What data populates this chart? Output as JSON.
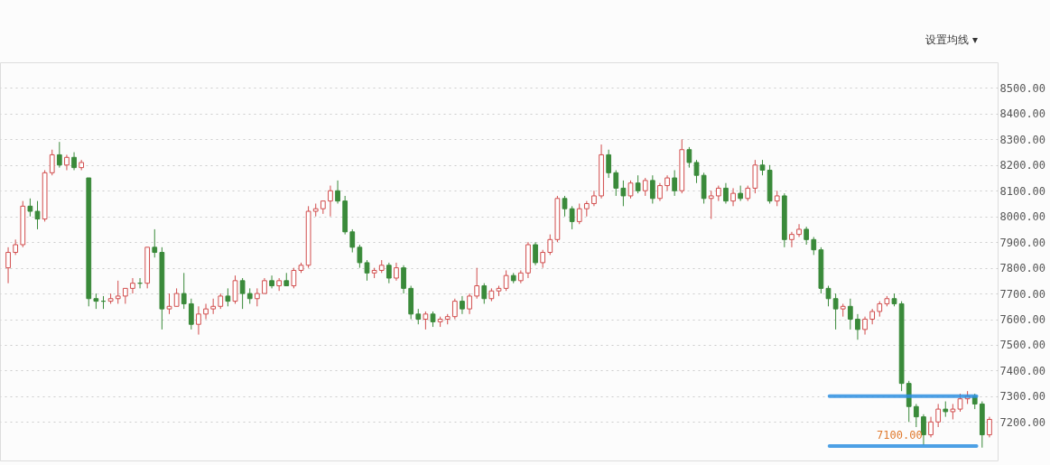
{
  "chart_data": {
    "type": "candlestick",
    "categories": [
      null,
      null,
      null,
      null,
      null,
      null,
      null,
      null,
      null,
      null,
      null,
      null,
      null,
      null,
      null,
      null,
      null,
      null,
      null,
      null,
      null,
      null,
      null,
      null,
      null,
      null,
      null,
      null,
      null,
      null,
      null,
      null,
      null,
      null,
      null,
      null,
      null,
      null,
      null,
      null,
      null,
      null,
      null,
      null,
      null,
      null,
      null,
      null,
      null,
      null,
      null,
      null,
      null,
      null,
      null,
      null,
      null,
      null,
      null,
      null,
      null,
      null,
      null,
      null,
      null,
      null,
      null,
      null,
      null,
      null,
      null,
      null,
      null,
      null,
      null,
      null,
      null,
      null,
      null,
      null,
      null,
      null,
      null,
      null,
      null,
      null,
      null,
      null,
      null,
      null,
      null,
      null,
      null,
      null,
      null,
      null,
      null,
      null,
      null,
      null,
      null,
      null,
      null,
      null,
      null,
      null,
      null,
      null,
      null,
      null,
      null,
      null,
      null,
      null,
      null,
      null,
      null,
      null,
      null,
      null,
      null,
      null,
      null,
      null,
      null,
      null,
      null,
      null,
      null,
      null,
      null,
      null,
      null,
      null,
      null
    ],
    "ohlc": [
      [
        7800,
        7880,
        7740,
        7860
      ],
      [
        7860,
        7910,
        7850,
        7890
      ],
      [
        7890,
        8060,
        7880,
        8040
      ],
      [
        8040,
        8070,
        8000,
        8020
      ],
      [
        8020,
        8060,
        7950,
        7990
      ],
      [
        7990,
        8180,
        7980,
        8170
      ],
      [
        8170,
        8260,
        8160,
        8240
      ],
      [
        8240,
        8290,
        8190,
        8200
      ],
      [
        8200,
        8240,
        8180,
        8230
      ],
      [
        8230,
        8250,
        8180,
        8190
      ],
      [
        8190,
        8220,
        8180,
        8210
      ],
      [
        8150,
        8150,
        7650,
        7680
      ],
      [
        7680,
        7700,
        7640,
        7670
      ],
      [
        7670,
        7690,
        7640,
        7670
      ],
      [
        7670,
        7700,
        7660,
        7680
      ],
      [
        7680,
        7750,
        7660,
        7690
      ],
      [
        7690,
        7720,
        7660,
        7720
      ],
      [
        7720,
        7760,
        7700,
        7740
      ],
      [
        7740,
        7760,
        7720,
        7740
      ],
      [
        7740,
        7880,
        7720,
        7880
      ],
      [
        7880,
        7950,
        7840,
        7860
      ],
      [
        7860,
        7880,
        7560,
        7640
      ],
      [
        7640,
        7700,
        7620,
        7650
      ],
      [
        7650,
        7720,
        7650,
        7700
      ],
      [
        7700,
        7780,
        7640,
        7660
      ],
      [
        7660,
        7680,
        7560,
        7580
      ],
      [
        7580,
        7650,
        7540,
        7620
      ],
      [
        7620,
        7660,
        7600,
        7640
      ],
      [
        7640,
        7680,
        7620,
        7650
      ],
      [
        7650,
        7700,
        7640,
        7690
      ],
      [
        7690,
        7720,
        7650,
        7670
      ],
      [
        7670,
        7770,
        7660,
        7750
      ],
      [
        7750,
        7760,
        7640,
        7700
      ],
      [
        7700,
        7720,
        7660,
        7680
      ],
      [
        7680,
        7720,
        7650,
        7700
      ],
      [
        7700,
        7760,
        7700,
        7750
      ],
      [
        7750,
        7770,
        7720,
        7730
      ],
      [
        7730,
        7760,
        7710,
        7750
      ],
      [
        7750,
        7780,
        7730,
        7730
      ],
      [
        7730,
        7800,
        7720,
        7790
      ],
      [
        7790,
        7820,
        7780,
        7810
      ],
      [
        7810,
        8040,
        7800,
        8020
      ],
      [
        8020,
        8050,
        8000,
        8030
      ],
      [
        8030,
        8060,
        8010,
        8060
      ],
      [
        8060,
        8120,
        8000,
        8100
      ],
      [
        8100,
        8140,
        8050,
        8060
      ],
      [
        8060,
        8080,
        7930,
        7940
      ],
      [
        7940,
        7950,
        7860,
        7880
      ],
      [
        7880,
        7890,
        7800,
        7820
      ],
      [
        7820,
        7830,
        7750,
        7780
      ],
      [
        7780,
        7800,
        7760,
        7790
      ],
      [
        7790,
        7830,
        7780,
        7810
      ],
      [
        7810,
        7820,
        7740,
        7760
      ],
      [
        7760,
        7820,
        7750,
        7800
      ],
      [
        7800,
        7810,
        7700,
        7720
      ],
      [
        7720,
        7730,
        7600,
        7620
      ],
      [
        7620,
        7640,
        7580,
        7600
      ],
      [
        7600,
        7630,
        7560,
        7620
      ],
      [
        7620,
        7630,
        7570,
        7590
      ],
      [
        7590,
        7610,
        7570,
        7600
      ],
      [
        7600,
        7620,
        7580,
        7610
      ],
      [
        7610,
        7680,
        7600,
        7670
      ],
      [
        7670,
        7690,
        7620,
        7640
      ],
      [
        7640,
        7700,
        7620,
        7690
      ],
      [
        7690,
        7800,
        7680,
        7730
      ],
      [
        7730,
        7740,
        7660,
        7680
      ],
      [
        7680,
        7720,
        7670,
        7710
      ],
      [
        7710,
        7730,
        7690,
        7720
      ],
      [
        7720,
        7790,
        7710,
        7770
      ],
      [
        7770,
        7780,
        7740,
        7750
      ],
      [
        7750,
        7790,
        7740,
        7780
      ],
      [
        7780,
        7900,
        7760,
        7890
      ],
      [
        7890,
        7900,
        7810,
        7820
      ],
      [
        7820,
        7870,
        7800,
        7860
      ],
      [
        7860,
        7930,
        7850,
        7910
      ],
      [
        7910,
        8080,
        7900,
        8070
      ],
      [
        8070,
        8080,
        8000,
        8030
      ],
      [
        8030,
        8040,
        7950,
        7980
      ],
      [
        7980,
        8050,
        7970,
        8030
      ],
      [
        8030,
        8060,
        8000,
        8050
      ],
      [
        8050,
        8100,
        8040,
        8080
      ],
      [
        8080,
        8280,
        8070,
        8240
      ],
      [
        8240,
        8260,
        8150,
        8170
      ],
      [
        8170,
        8180,
        8080,
        8110
      ],
      [
        8110,
        8140,
        8040,
        8080
      ],
      [
        8080,
        8140,
        8070,
        8130
      ],
      [
        8130,
        8160,
        8090,
        8100
      ],
      [
        8100,
        8150,
        8080,
        8140
      ],
      [
        8140,
        8160,
        8050,
        8070
      ],
      [
        8070,
        8130,
        8060,
        8120
      ],
      [
        8120,
        8160,
        8100,
        8150
      ],
      [
        8150,
        8180,
        8080,
        8100
      ],
      [
        8100,
        8300,
        8090,
        8260
      ],
      [
        8260,
        8270,
        8190,
        8210
      ],
      [
        8210,
        8220,
        8130,
        8160
      ],
      [
        8160,
        8170,
        8050,
        8070
      ],
      [
        8070,
        8100,
        7990,
        8080
      ],
      [
        8080,
        8120,
        8060,
        8110
      ],
      [
        8110,
        8130,
        8050,
        8060
      ],
      [
        8060,
        8110,
        8040,
        8090
      ],
      [
        8090,
        8120,
        8060,
        8070
      ],
      [
        8070,
        8120,
        8060,
        8110
      ],
      [
        8110,
        8220,
        8090,
        8200
      ],
      [
        8200,
        8220,
        8160,
        8180
      ],
      [
        8180,
        8200,
        8050,
        8060
      ],
      [
        8060,
        8100,
        8040,
        8080
      ],
      [
        8080,
        8090,
        7880,
        7910
      ],
      [
        7910,
        7940,
        7880,
        7930
      ],
      [
        7930,
        7970,
        7920,
        7950
      ],
      [
        7950,
        7960,
        7890,
        7910
      ],
      [
        7910,
        7920,
        7850,
        7870
      ],
      [
        7870,
        7880,
        7700,
        7720
      ],
      [
        7720,
        7730,
        7650,
        7680
      ],
      [
        7680,
        7700,
        7560,
        7640
      ],
      [
        7640,
        7660,
        7610,
        7650
      ],
      [
        7650,
        7680,
        7560,
        7600
      ],
      [
        7600,
        7620,
        7520,
        7560
      ],
      [
        7560,
        7610,
        7540,
        7600
      ],
      [
        7600,
        7640,
        7580,
        7630
      ],
      [
        7630,
        7670,
        7610,
        7660
      ],
      [
        7660,
        7690,
        7650,
        7680
      ],
      [
        7680,
        7700,
        7650,
        7660
      ],
      [
        7660,
        7670,
        7320,
        7350
      ],
      [
        7350,
        7360,
        7200,
        7260
      ],
      [
        7260,
        7270,
        7180,
        7220
      ],
      [
        7220,
        7230,
        7110,
        7150
      ],
      [
        7150,
        7220,
        7140,
        7200
      ],
      [
        7200,
        7270,
        7180,
        7250
      ],
      [
        7250,
        7280,
        7220,
        7240
      ],
      [
        7240,
        7270,
        7210,
        7250
      ],
      [
        7250,
        7310,
        7240,
        7290
      ],
      [
        7290,
        7320,
        7270,
        7300
      ],
      [
        7300,
        7310,
        7250,
        7270
      ],
      [
        7270,
        7280,
        7100,
        7150
      ],
      [
        7150,
        7220,
        7140,
        7210
      ]
    ],
    "colors": [
      "#d14c4c",
      "#d14c4c",
      "#d14c4c",
      "#3a8a3a",
      "#3a8a3a",
      "#d14c4c",
      "#d14c4c",
      "#3a8a3a",
      "#d14c4c",
      "#3a8a3a",
      "#d14c4c",
      "#3a8a3a",
      "#3a8a3a",
      "#3a8a3a",
      "#d14c4c",
      "#d14c4c",
      "#d14c4c",
      "#d14c4c",
      "#3a8a3a",
      "#d14c4c",
      "#3a8a3a",
      "#3a8a3a",
      "#d14c4c",
      "#d14c4c",
      "#3a8a3a",
      "#3a8a3a",
      "#d14c4c",
      "#d14c4c",
      "#d14c4c",
      "#d14c4c",
      "#3a8a3a",
      "#d14c4c",
      "#3a8a3a",
      "#3a8a3a",
      "#d14c4c",
      "#d14c4c",
      "#3a8a3a",
      "#d14c4c",
      "#3a8a3a",
      "#d14c4c",
      "#d14c4c",
      "#d14c4c",
      "#d14c4c",
      "#d14c4c",
      "#d14c4c",
      "#3a8a3a",
      "#3a8a3a",
      "#3a8a3a",
      "#3a8a3a",
      "#3a8a3a",
      "#d14c4c",
      "#d14c4c",
      "#3a8a3a",
      "#d14c4c",
      "#3a8a3a",
      "#3a8a3a",
      "#3a8a3a",
      "#d14c4c",
      "#3a8a3a",
      "#d14c4c",
      "#d14c4c",
      "#d14c4c",
      "#3a8a3a",
      "#d14c4c",
      "#d14c4c",
      "#3a8a3a",
      "#d14c4c",
      "#d14c4c",
      "#d14c4c",
      "#3a8a3a",
      "#d14c4c",
      "#d14c4c",
      "#3a8a3a",
      "#d14c4c",
      "#d14c4c",
      "#d14c4c",
      "#3a8a3a",
      "#3a8a3a",
      "#d14c4c",
      "#d14c4c",
      "#d14c4c",
      "#d14c4c",
      "#3a8a3a",
      "#3a8a3a",
      "#3a8a3a",
      "#d14c4c",
      "#3a8a3a",
      "#d14c4c",
      "#3a8a3a",
      "#d14c4c",
      "#d14c4c",
      "#3a8a3a",
      "#d14c4c",
      "#3a8a3a",
      "#3a8a3a",
      "#3a8a3a",
      "#d14c4c",
      "#d14c4c",
      "#3a8a3a",
      "#d14c4c",
      "#3a8a3a",
      "#d14c4c",
      "#d14c4c",
      "#3a8a3a",
      "#3a8a3a",
      "#d14c4c",
      "#3a8a3a",
      "#d14c4c",
      "#d14c4c",
      "#3a8a3a",
      "#3a8a3a",
      "#3a8a3a",
      "#3a8a3a",
      "#3a8a3a",
      "#d14c4c",
      "#3a8a3a",
      "#3a8a3a",
      "#d14c4c",
      "#d14c4c",
      "#d14c4c",
      "#d14c4c",
      "#3a8a3a",
      "#3a8a3a",
      "#3a8a3a",
      "#3a8a3a",
      "#3a8a3a",
      "#d14c4c",
      "#d14c4c",
      "#3a8a3a",
      "#d14c4c",
      "#d14c4c",
      "#d14c4c",
      "#3a8a3a",
      "#3a8a3a",
      "#d14c4c"
    ],
    "ylim": [
      7050,
      8600
    ],
    "yticks": [
      {
        "value": 7200,
        "label": "7200.00"
      },
      {
        "value": 7300,
        "label": "7300.00"
      },
      {
        "value": 7400,
        "label": "7400.00"
      },
      {
        "value": 7500,
        "label": "7500.00"
      },
      {
        "value": 7600,
        "label": "7600.00"
      },
      {
        "value": 7700,
        "label": "7700.00"
      },
      {
        "value": 7800,
        "label": "7800.00"
      },
      {
        "value": 7900,
        "label": "7900.00"
      },
      {
        "value": 8000,
        "label": "8000.00"
      },
      {
        "value": 8100,
        "label": "8100.00"
      },
      {
        "value": 8200,
        "label": "8200.00"
      },
      {
        "value": 8300,
        "label": "8300.00"
      },
      {
        "value": 8400,
        "label": "8400.00"
      },
      {
        "value": 8500,
        "label": "8500.00"
      }
    ],
    "grid": "y",
    "tick_labels": "y",
    "ref_lines": [
      {
        "axis": "y",
        "value": 7300,
        "label": null,
        "color": "#2e8fe0"
      },
      {
        "axis": "y",
        "value": 7106,
        "label": null,
        "color": "#2e8fe0"
      }
    ],
    "annotations": [
      "设置均线 ▾",
      "7100.00"
    ]
  }
}
